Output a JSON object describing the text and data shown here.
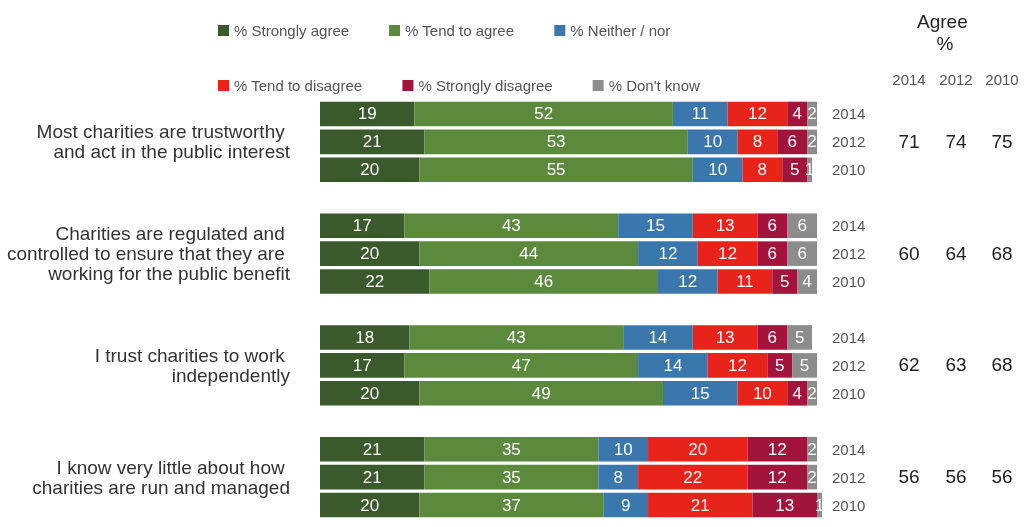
{
  "chart_data": {
    "type": "bar",
    "orientation": "horizontal",
    "stacked": true,
    "data_labels": true,
    "legend": "top",
    "categories": [
      "2014",
      "2012",
      "2010",
      null,
      "2014",
      "2012",
      "2010",
      null,
      "2014",
      "2012",
      "2010",
      null,
      "2014",
      "2012",
      "2010"
    ],
    "series": [
      {
        "name": "% Strongly agree",
        "color": "#3b5a2b",
        "values": [
          19,
          21,
          20,
          null,
          17,
          20,
          22,
          null,
          18,
          17,
          20,
          null,
          21,
          21,
          20
        ]
      },
      {
        "name": "% Tend to agree",
        "color": "#5b8a3c",
        "values": [
          52,
          53,
          55,
          null,
          43,
          44,
          46,
          null,
          43,
          47,
          49,
          null,
          35,
          35,
          37
        ]
      },
      {
        "name": "% Neither / nor",
        "color": "#3a77ad",
        "values": [
          11,
          10,
          10,
          null,
          15,
          12,
          12,
          null,
          14,
          14,
          15,
          null,
          10,
          8,
          9
        ]
      },
      {
        "name": "% Tend to disagree",
        "color": "#e8231a",
        "values": [
          12,
          8,
          8,
          null,
          13,
          12,
          11,
          null,
          13,
          12,
          10,
          null,
          20,
          22,
          21
        ]
      },
      {
        "name": "% Strongly disagree",
        "color": "#a3143c",
        "values": [
          4,
          6,
          5,
          null,
          6,
          6,
          5,
          null,
          6,
          5,
          4,
          null,
          12,
          12,
          13
        ]
      },
      {
        "name": "% Don't know",
        "color": "#8c8c8c",
        "values": [
          2,
          2,
          1,
          null,
          6,
          6,
          4,
          null,
          5,
          5,
          2,
          null,
          2,
          2,
          1
        ]
      }
    ],
    "annotations": [
      "Most charities are trustworthy and act in the public interest",
      "Charities are regulated and controlled to ensure that they are working for the public benefit",
      "I trust charities to work independently",
      "I know very little about how charities are run and managed",
      "Agree %",
      "2014",
      "2012",
      "2010",
      "71",
      "74",
      "75",
      "60",
      "64",
      "68",
      "62",
      "63",
      "68",
      "56",
      "56",
      "56"
    ]
  }
}
